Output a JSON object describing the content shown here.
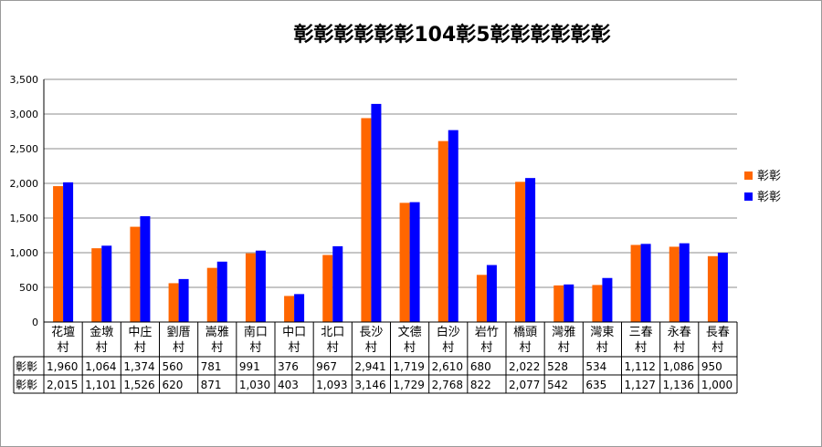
{
  "chart_data": {
    "type": "bar",
    "title": "彰彰彰彰彰彰104彰5彰彰彰彰彰彰",
    "categories": [
      "花壇村",
      "金墩村",
      "中庄村",
      "劉厝村",
      "嵩雅村",
      "南口村",
      "中口村",
      "北口村",
      "長沙村",
      "文德村",
      "白沙村",
      "岩竹村",
      "橋頭村",
      "灣雅村",
      "灣東村",
      "三春村",
      "永春村",
      "長春村"
    ],
    "series": [
      {
        "name": "彰彰",
        "color": "#ff6600",
        "values": [
          1960,
          1064,
          1374,
          560,
          781,
          991,
          376,
          967,
          2941,
          1719,
          2610,
          680,
          2022,
          528,
          534,
          1112,
          1086,
          950
        ]
      },
      {
        "name": "彰彰",
        "color": "#0000ff",
        "values": [
          2015,
          1101,
          1526,
          620,
          871,
          1030,
          403,
          1093,
          3146,
          1729,
          2768,
          822,
          2077,
          542,
          635,
          1127,
          1136,
          1000
        ]
      }
    ],
    "table": {
      "rows": [
        {
          "label": "彰彰",
          "values": [
            "1,960",
            "1,064",
            "1,374",
            "560",
            "781",
            "991",
            "376",
            "967",
            "2,941",
            "1,719",
            "2,610",
            "680",
            "2,022",
            "528",
            "534",
            "1,112",
            "1,086",
            "950"
          ]
        },
        {
          "label": "彰彰",
          "values": [
            "2,015",
            "1,101",
            "1,526",
            "620",
            "871",
            "1,030",
            "403",
            "1,093",
            "3,146",
            "1,729",
            "2,768",
            "822",
            "2,077",
            "542",
            "635",
            "1,127",
            "1,136",
            "1,000"
          ]
        }
      ]
    },
    "ylim": [
      0,
      3500
    ],
    "yticks": [
      "0",
      "500",
      "1,000",
      "1,500",
      "2,000",
      "2,500",
      "3,000",
      "3,500"
    ],
    "ytick_values": [
      0,
      500,
      1000,
      1500,
      2000,
      2500,
      3000,
      3500
    ],
    "grid": true,
    "legend_position": "right"
  }
}
